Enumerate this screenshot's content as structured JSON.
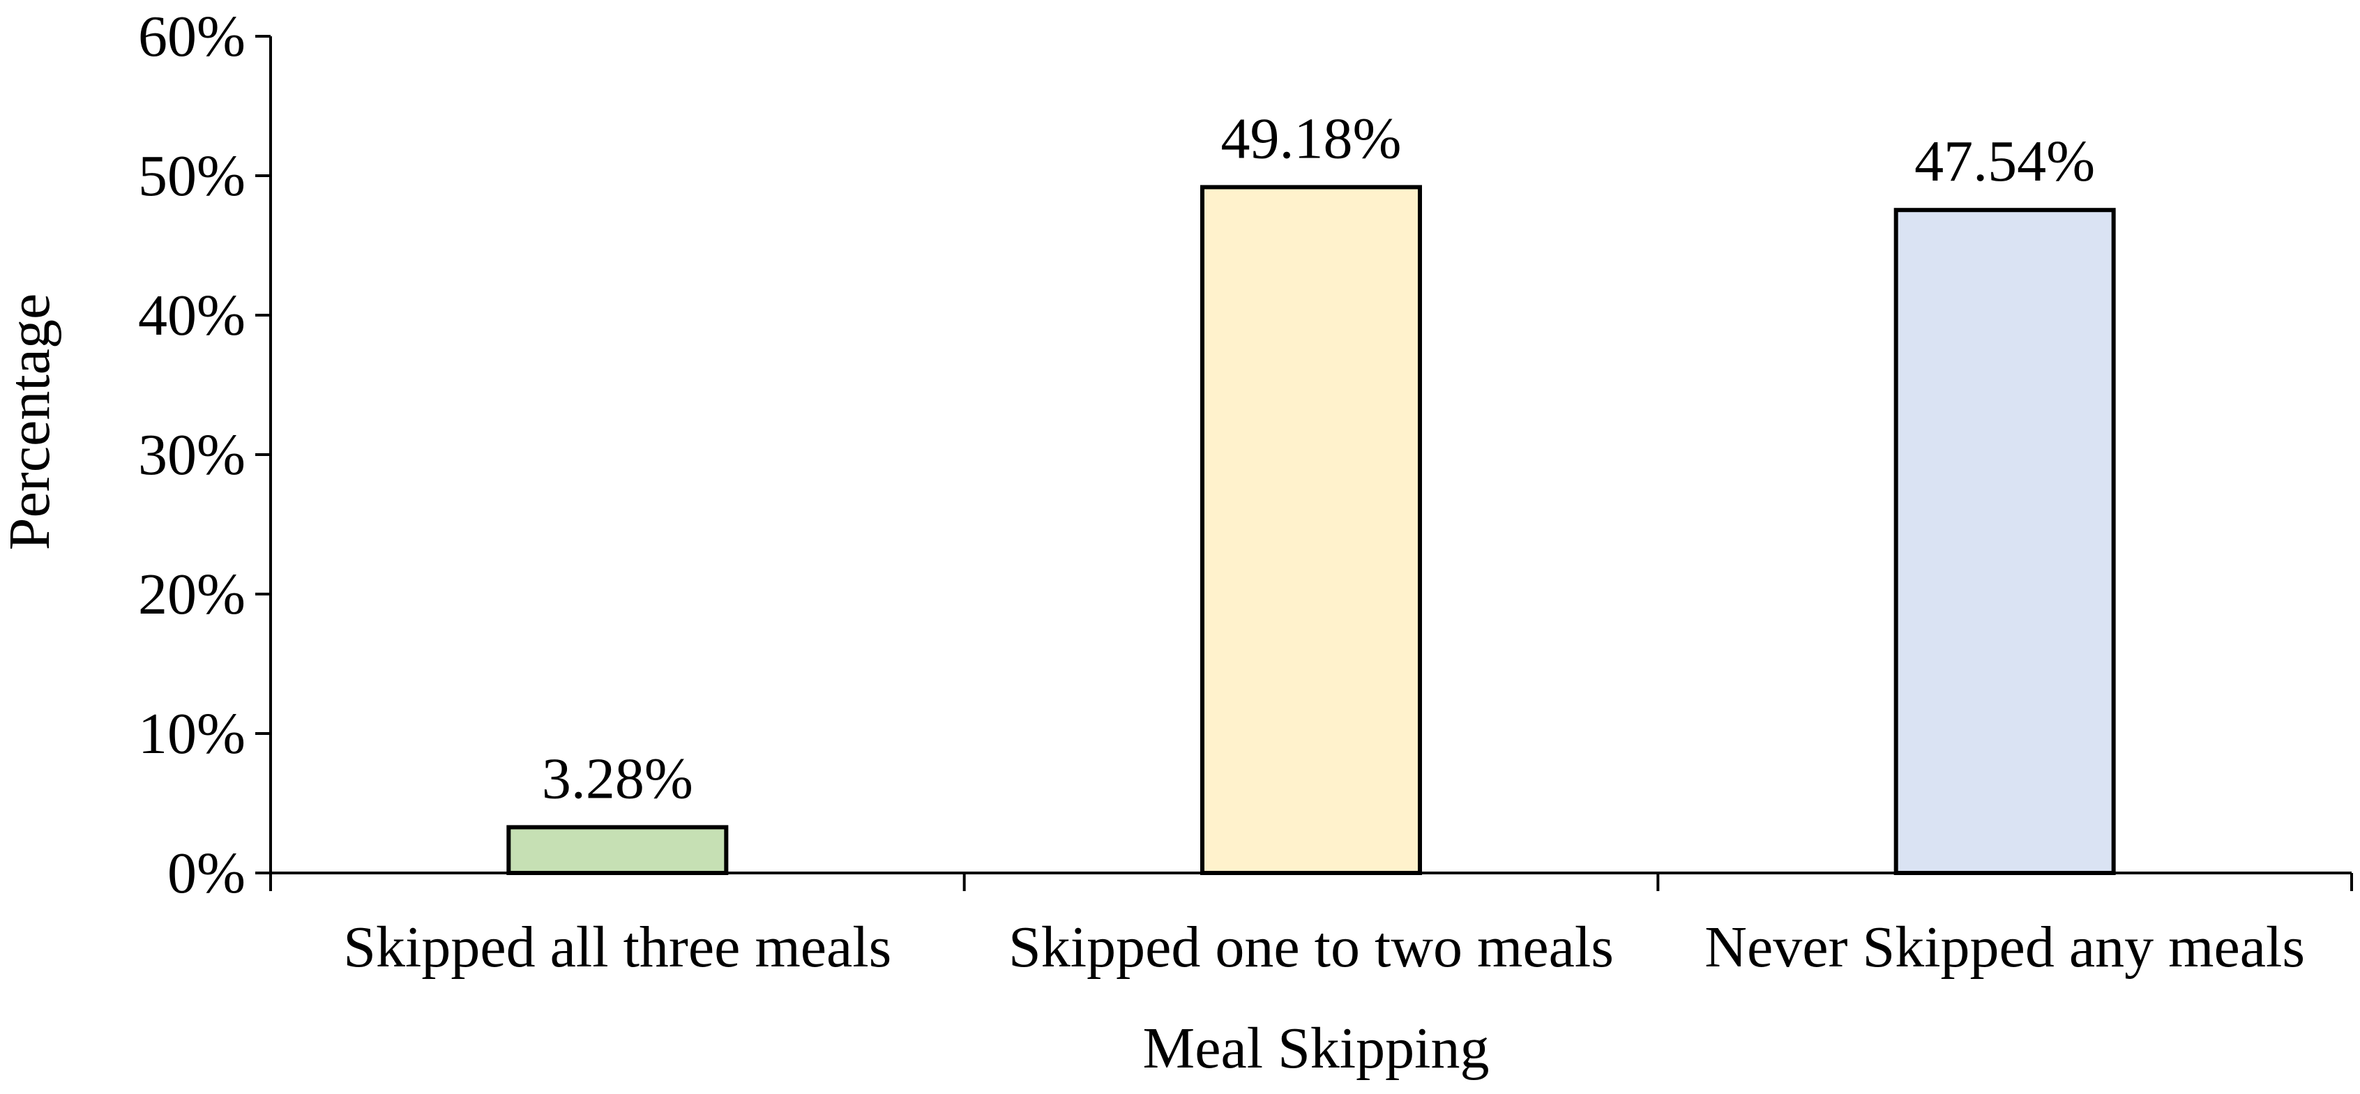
{
  "chart_data": {
    "type": "bar",
    "title": "",
    "xlabel": "Meal Skipping",
    "ylabel": "Percentage",
    "categories": [
      "Skipped all three meals",
      "Skipped one to two meals",
      "Never Skipped any meals"
    ],
    "values": [
      3.28,
      49.18,
      47.54
    ],
    "data_labels": [
      "3.28%",
      "49.18%",
      "47.54%"
    ],
    "bar_colors": [
      "#c6e0b4",
      "#fff2cc",
      "#dae3f3"
    ],
    "bar_stroke": "#000000",
    "ylim": [
      0,
      60
    ],
    "yticks": [
      0,
      10,
      20,
      30,
      40,
      50,
      60
    ],
    "ytick_labels": [
      "0%",
      "10%",
      "20%",
      "30%",
      "40%",
      "50%",
      "60%"
    ],
    "grid": false,
    "legend": "none"
  }
}
